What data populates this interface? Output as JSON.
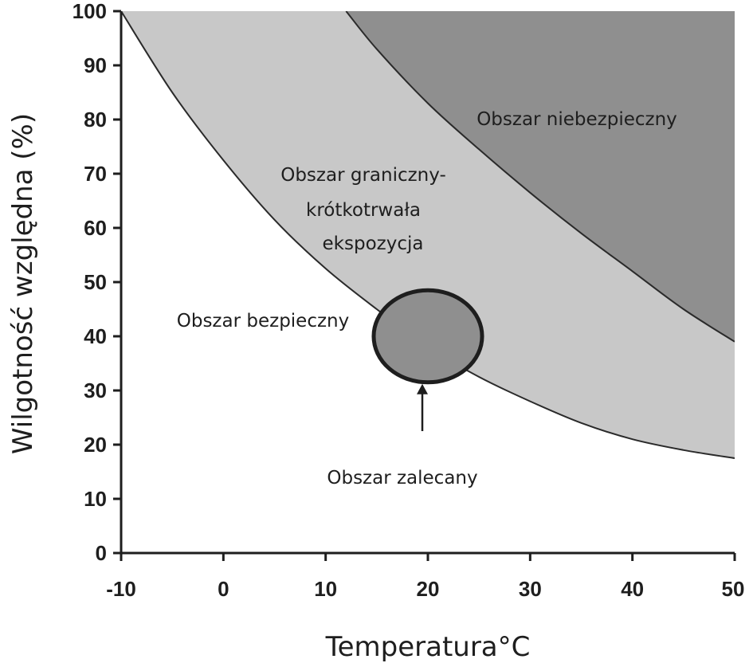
{
  "chart_data": {
    "type": "area",
    "title": "",
    "xlabel": "Temperatura°C",
    "ylabel": "Wilgotność względna (%)",
    "xlim": [
      -10,
      50
    ],
    "ylim": [
      0,
      100
    ],
    "x_ticks": [
      -10,
      0,
      10,
      20,
      30,
      40,
      50
    ],
    "x_tick_labels": [
      "-10",
      "0",
      "10",
      "20",
      "30",
      "40",
      "50"
    ],
    "y_ticks": [
      0,
      10,
      20,
      30,
      40,
      50,
      60,
      70,
      80,
      90,
      100
    ],
    "y_tick_labels": [
      "0",
      "10",
      "20",
      "30",
      "40",
      "50",
      "60",
      "70",
      "80",
      "90",
      "100"
    ],
    "grid": false,
    "curves": [
      {
        "name": "safe-boundary",
        "x": [
          -10,
          -5,
          0,
          5,
          10,
          15,
          20,
          25,
          30,
          35,
          40,
          45,
          50
        ],
        "y": [
          100,
          85,
          72.5,
          61.5,
          52.5,
          45,
          38,
          32.5,
          28,
          24,
          21,
          19,
          17.5
        ]
      },
      {
        "name": "danger-boundary",
        "x": [
          12,
          15,
          20,
          25,
          30,
          35,
          40,
          45,
          50
        ],
        "y": [
          100,
          93,
          83,
          74.5,
          66.5,
          59,
          52,
          45,
          39
        ]
      }
    ],
    "regions": [
      {
        "name": "Obszar bezpieczny",
        "color": "#ffffff"
      },
      {
        "name": "Obszar graniczny-krótkotrwała ekspozycja",
        "color": "#c8c8c8"
      },
      {
        "name": "Obszar niebezpieczny",
        "color": "#8f8f8f"
      }
    ],
    "recommended_zone": {
      "name": "Obszar zalecany",
      "center_x": 20,
      "center_y": 40,
      "x_radius": 5.3,
      "y_radius": 8.5,
      "color": "#8f8f8f"
    },
    "annotations": {
      "danger": "Obszar niebezpieczny",
      "borderline": [
        "Obszar graniczny-",
        "krótkotrwała",
        "ekspozycja"
      ],
      "safe": "Obszar bezpieczny",
      "recommended": "Obszar zalecany"
    }
  }
}
